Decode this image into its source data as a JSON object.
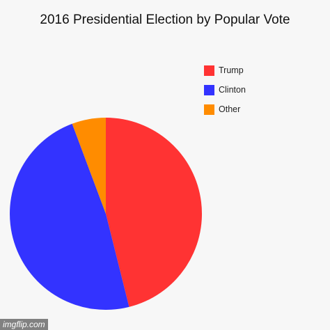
{
  "chart_data": {
    "type": "pie",
    "title": "2016 Presidential Election by Popular Vote",
    "slices": [
      {
        "label": "Trump",
        "value": 46.1,
        "color": "#ff3333"
      },
      {
        "label": "Clinton",
        "value": 48.2,
        "color": "#3333ff"
      },
      {
        "label": "Other",
        "value": 5.7,
        "color": "#ff8c00"
      }
    ],
    "start_angle_deg": 0,
    "direction": "clockwise",
    "legend_position": "top-right"
  },
  "watermark": "imgflip.com"
}
